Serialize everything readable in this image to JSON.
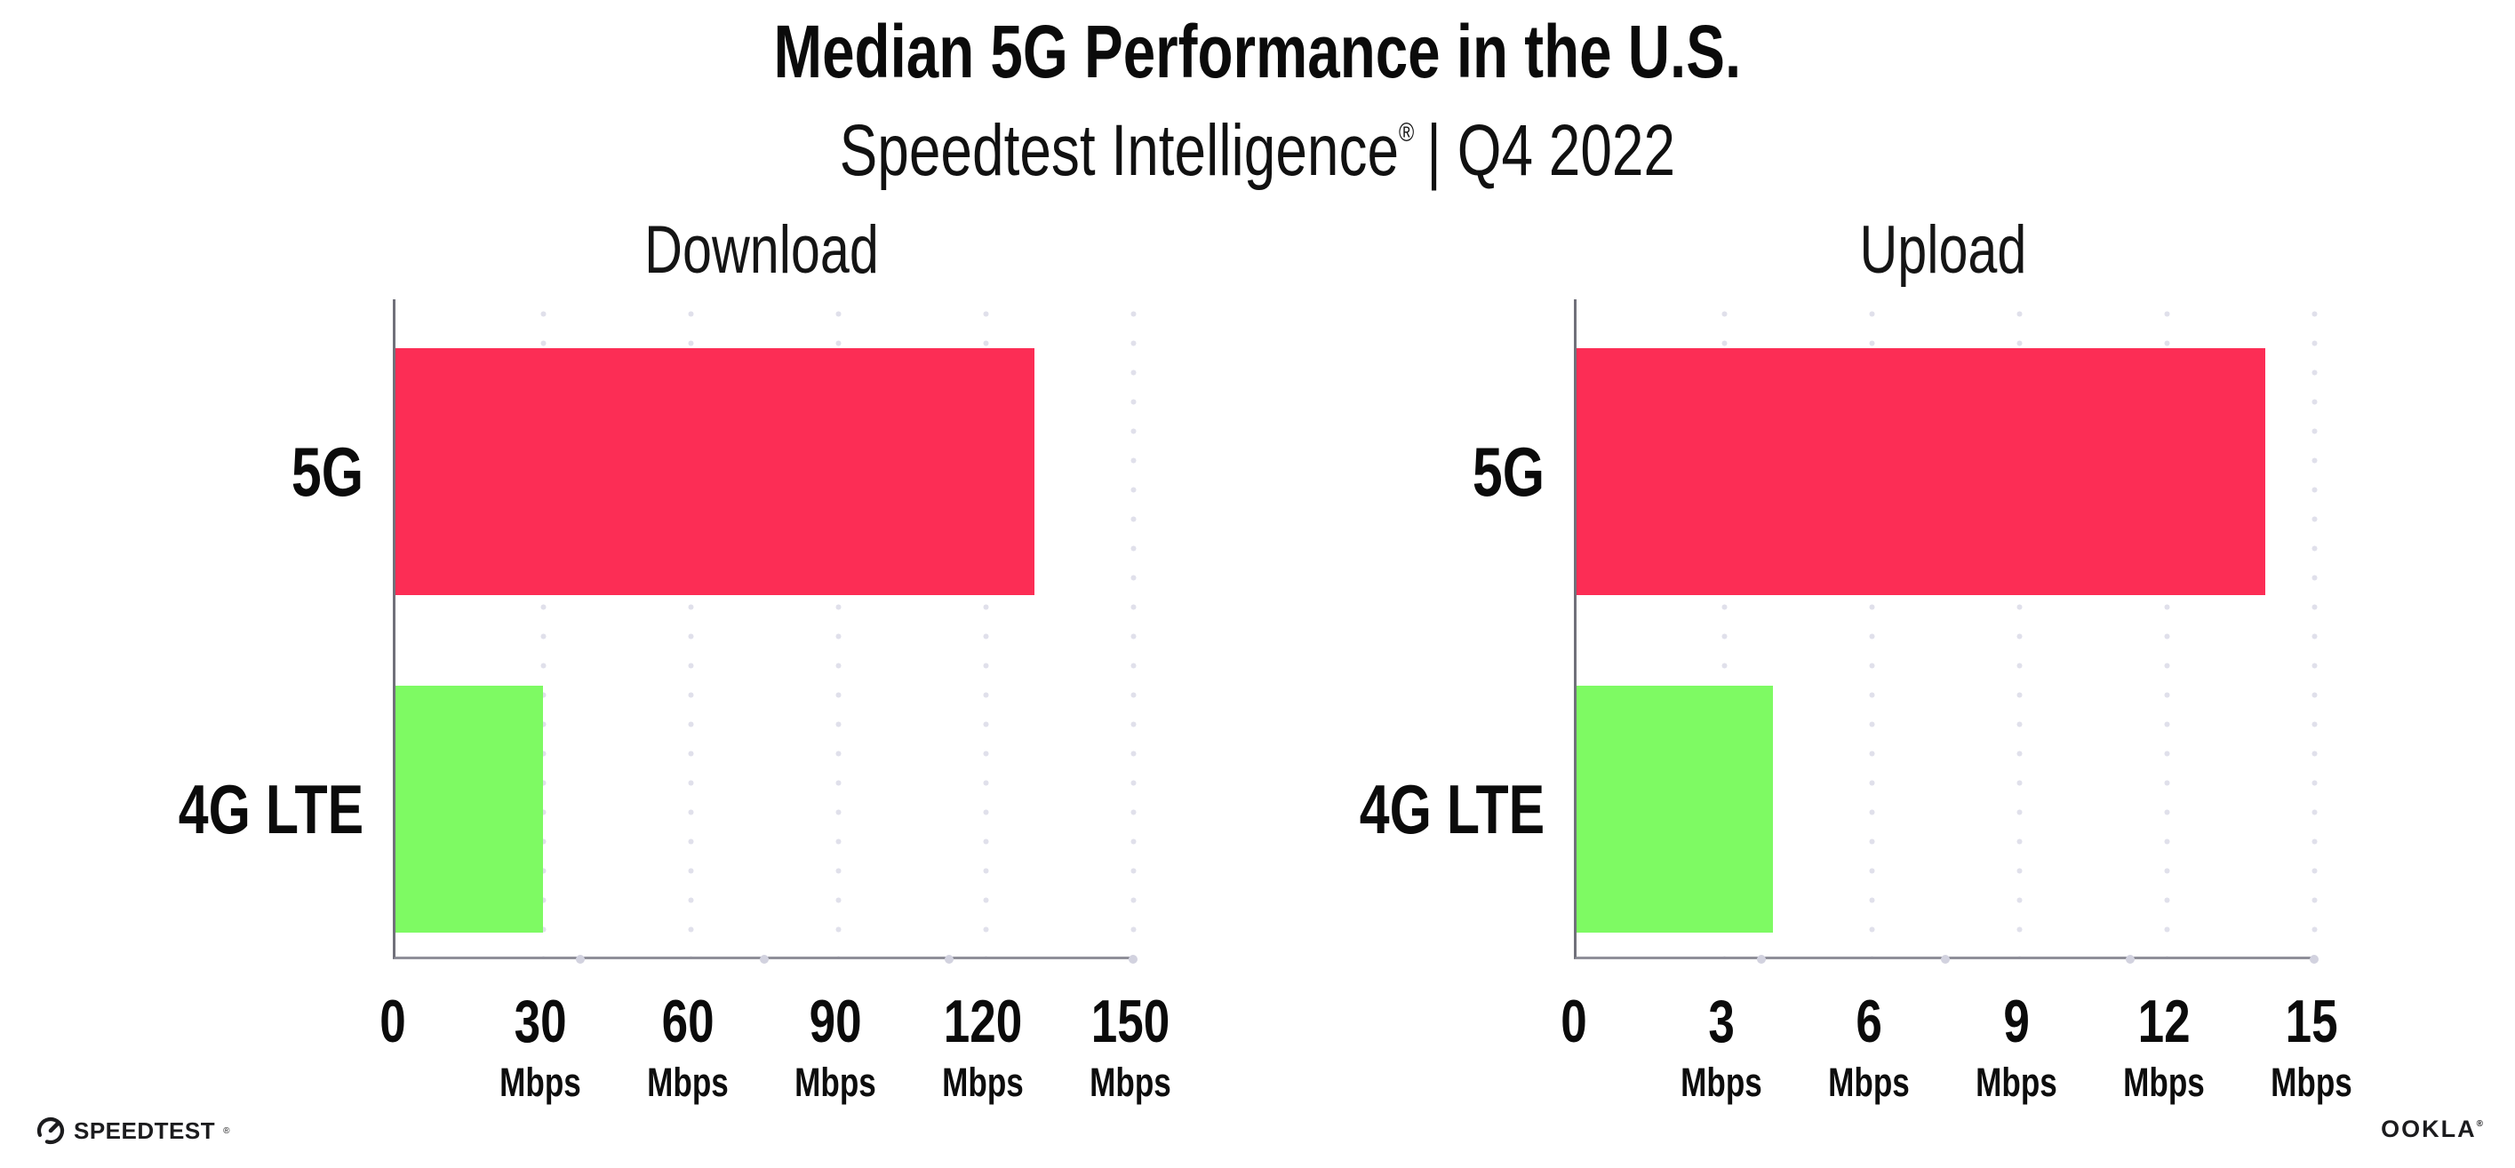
{
  "header": {
    "title": "Median 5G Performance in the U.S.",
    "subtitle_brand": "Speedtest Intelligence",
    "subtitle_mark": "®",
    "subtitle_rest": "| Q4 2022"
  },
  "chart_data": [
    {
      "type": "bar",
      "orientation": "horizontal",
      "title": "Download",
      "categories": [
        "5G",
        "4G LTE"
      ],
      "values": [
        130,
        30
      ],
      "unit": "Mbps",
      "xlabel": "",
      "ylabel": "",
      "xlim": [
        0,
        150
      ],
      "xticks": [
        0,
        30,
        60,
        90,
        120,
        150
      ],
      "bar_colors": [
        "#FC2D55",
        "#7EFA63"
      ],
      "grid": "dotted-vertical-gridlines",
      "legend": "none"
    },
    {
      "type": "bar",
      "orientation": "horizontal",
      "title": "Upload",
      "categories": [
        "5G",
        "4G LTE"
      ],
      "values": [
        14,
        4
      ],
      "unit": "Mbps",
      "xlabel": "",
      "ylabel": "",
      "xlim": [
        0,
        15
      ],
      "xticks": [
        0,
        3,
        6,
        9,
        12,
        15
      ],
      "bar_colors": [
        "#FC2D55",
        "#7EFA63"
      ],
      "grid": "dotted-vertical-gridlines",
      "legend": "none"
    }
  ],
  "footer": {
    "speedtest_label": "SPEEDTEST",
    "speedtest_mark": "®",
    "ookla_label": "OOKLA",
    "ookla_mark": "®"
  },
  "colors": {
    "bar_5g": "#FC2D55",
    "bar_4g_lte": "#7EFA63",
    "axis_line": "#8f8f99",
    "gridline_dots": "#e0e0eb",
    "text": "#0b0b0b",
    "background": "#ffffff"
  }
}
